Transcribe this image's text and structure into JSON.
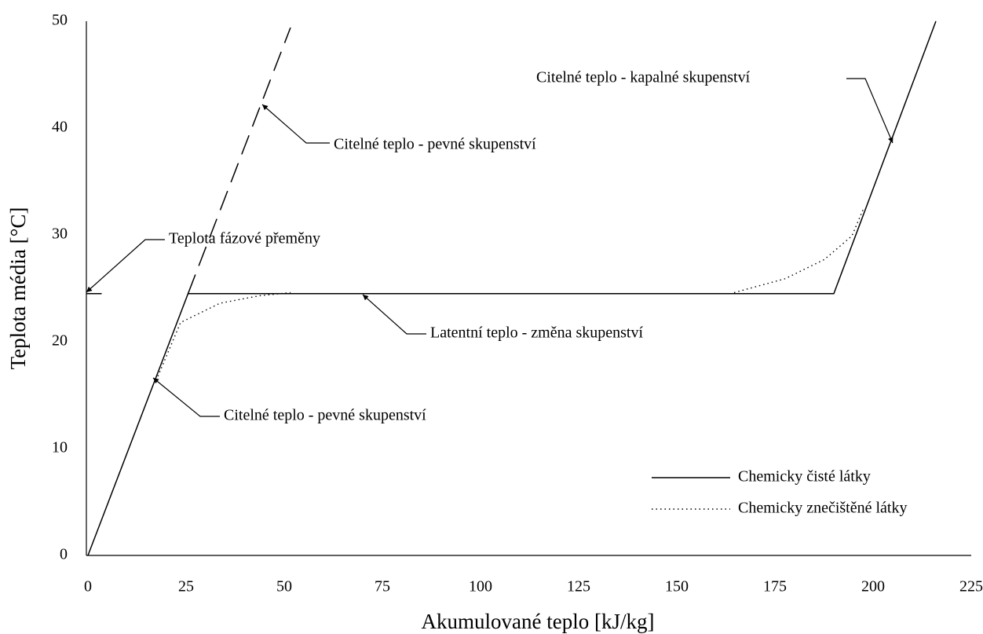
{
  "chart_data": {
    "type": "line",
    "xlabel": "Akumulované teplo [kJ/kg]",
    "ylabel": "Teplota média [°C]",
    "xlim": [
      0,
      225
    ],
    "xticks": [
      0,
      25,
      50,
      75,
      100,
      125,
      150,
      175,
      200,
      225
    ],
    "ylim": [
      0,
      50
    ],
    "yticks": [
      0,
      10,
      20,
      30,
      40,
      50
    ],
    "grid": false,
    "legend": "lower right",
    "series": [
      {
        "name": "Chemicky čisté látky",
        "color": "#000000",
        "style": "solid",
        "x": [
          0,
          25.5,
          190,
          216
        ],
        "values": [
          0,
          24.5,
          24.5,
          50
        ]
      },
      {
        "name": "Chemicky znečištěné látky",
        "color": "#000000",
        "style": "dotted",
        "x": [
          17.4,
          23.6,
          33.6,
          43.6,
          51.6,
          null,
          164.6,
          177.6,
          187.6,
          194.6,
          197.6
        ],
        "values": [
          16.4,
          21.8,
          23.6,
          24.3,
          24.6,
          null,
          24.6,
          25.9,
          27.7,
          29.9,
          32.5
        ]
      }
    ],
    "dashed_line": {
      "color": "#000000",
      "style": "dashed",
      "x": [
        25.5,
        51.6
      ],
      "values": [
        24.5,
        49.4
      ]
    },
    "marker_line": {
      "color": "#000000",
      "style": "solid",
      "x": [
        -0.5,
        3.5
      ],
      "values": [
        24.5,
        24.5
      ]
    },
    "annotations": [
      "Citelné teplo - pevné skupenství",
      "Teplota fázové přeměny",
      "Latentní teplo - změna skupenství",
      "Citelné teplo - pevné skupenství",
      "Citelné teplo - kapalné skupenství"
    ]
  }
}
